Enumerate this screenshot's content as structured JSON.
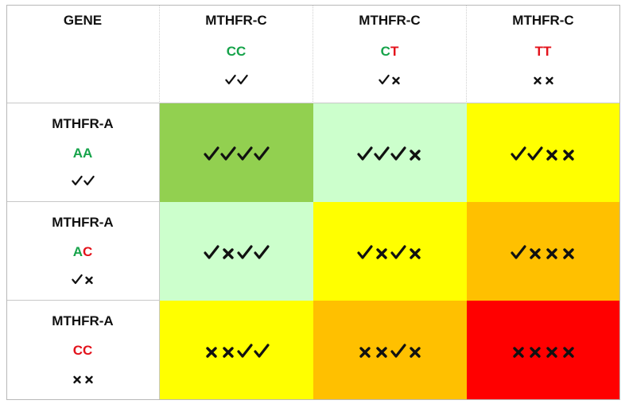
{
  "corner_label": "GENE",
  "columns": [
    {
      "gene": "MTHFR-C",
      "alleles": [
        {
          "letter": "C",
          "status": "ok"
        },
        {
          "letter": "C",
          "status": "ok"
        }
      ],
      "symbols": [
        "check",
        "check"
      ]
    },
    {
      "gene": "MTHFR-C",
      "alleles": [
        {
          "letter": "C",
          "status": "ok"
        },
        {
          "letter": "T",
          "status": "bad"
        }
      ],
      "symbols": [
        "check",
        "cross"
      ]
    },
    {
      "gene": "MTHFR-C",
      "alleles": [
        {
          "letter": "T",
          "status": "bad"
        },
        {
          "letter": "T",
          "status": "bad"
        }
      ],
      "symbols": [
        "cross",
        "cross"
      ]
    }
  ],
  "rows": [
    {
      "gene": "MTHFR-A",
      "alleles": [
        {
          "letter": "A",
          "status": "ok"
        },
        {
          "letter": "A",
          "status": "ok"
        }
      ],
      "symbols": [
        "check",
        "check"
      ],
      "cells": [
        {
          "symbols": [
            "check",
            "check",
            "check",
            "check"
          ],
          "color": "#92d050"
        },
        {
          "symbols": [
            "check",
            "check",
            "check",
            "cross"
          ],
          "color": "#ccffcc"
        },
        {
          "symbols": [
            "check",
            "check",
            "cross",
            "cross"
          ],
          "color": "#ffff00"
        }
      ]
    },
    {
      "gene": "MTHFR-A",
      "alleles": [
        {
          "letter": "A",
          "status": "ok"
        },
        {
          "letter": "C",
          "status": "bad"
        }
      ],
      "symbols": [
        "check",
        "cross"
      ],
      "cells": [
        {
          "symbols": [
            "check",
            "cross",
            "check",
            "check"
          ],
          "color": "#ccffcc"
        },
        {
          "symbols": [
            "check",
            "cross",
            "check",
            "cross"
          ],
          "color": "#ffff00"
        },
        {
          "symbols": [
            "check",
            "cross",
            "cross",
            "cross"
          ],
          "color": "#ffc000"
        }
      ]
    },
    {
      "gene": "MTHFR-A",
      "alleles": [
        {
          "letter": "C",
          "status": "bad"
        },
        {
          "letter": "C",
          "status": "bad"
        }
      ],
      "symbols": [
        "cross",
        "cross"
      ],
      "cells": [
        {
          "symbols": [
            "cross",
            "cross",
            "check",
            "check"
          ],
          "color": "#ffff00"
        },
        {
          "symbols": [
            "cross",
            "cross",
            "check",
            "cross"
          ],
          "color": "#ffc000"
        },
        {
          "symbols": [
            "cross",
            "cross",
            "cross",
            "cross"
          ],
          "color": "#ff0000"
        }
      ]
    }
  ],
  "colors": {
    "ok_allele": "#16a34a",
    "bad_allele": "#e3121b"
  }
}
